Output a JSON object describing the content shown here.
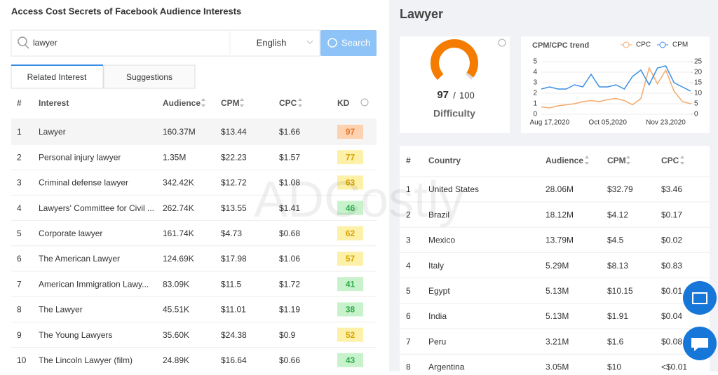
{
  "header": {
    "title": "Access Cost Secrets of Facebook Audience Interests"
  },
  "search": {
    "query": "lawyer",
    "language": "English",
    "button": "Search"
  },
  "tabs": [
    "Related Interest",
    "Suggestions"
  ],
  "interests": {
    "columns": [
      "#",
      "Interest",
      "Audience",
      "CPM",
      "CPC",
      "KD"
    ],
    "rows": [
      [
        1,
        "Lawyer",
        "160.37M",
        "$13.44",
        "$1.66",
        97
      ],
      [
        2,
        "Personal injury lawyer",
        "1.35M",
        "$22.23",
        "$1.57",
        77
      ],
      [
        3,
        "Criminal defense lawyer",
        "342.42K",
        "$12.72",
        "$1.08",
        63
      ],
      [
        4,
        "Lawyers' Committee for Civil ...",
        "262.74K",
        "$13.55",
        "$1.41",
        46
      ],
      [
        5,
        "Corporate lawyer",
        "161.74K",
        "$4.73",
        "$0.68",
        62
      ],
      [
        6,
        "The American Lawyer",
        "124.69K",
        "$17.98",
        "$1.06",
        57
      ],
      [
        7,
        "American Immigration Lawy...",
        "83.09K",
        "$11.5",
        "$1.72",
        41
      ],
      [
        8,
        "The Lawyer",
        "45.51K",
        "$11.01",
        "$1.19",
        38
      ],
      [
        9,
        "The Young Lawyers",
        "35.60K",
        "$24.38",
        "$0.9",
        52
      ],
      [
        10,
        "The Lincoln Lawyer (film)",
        "24.89K",
        "$16.64",
        "$0.66",
        43
      ]
    ]
  },
  "keyword": "Lawyer",
  "difficulty": {
    "value": 97,
    "separator": "/",
    "max": 100,
    "label": "Difficulty"
  },
  "chart_data": {
    "type": "line",
    "title": "CPM/CPC trend",
    "categories": [
      null,
      "Aug 17,2020",
      null,
      null,
      null,
      null,
      null,
      null,
      "Oct 05,2020",
      null,
      null,
      null,
      null,
      null,
      null,
      "Nov 23,2020",
      null,
      null,
      null
    ],
    "series": [
      {
        "name": "CPC",
        "color": "#f5a96b",
        "values": [
          0.7,
          0.6,
          0.8,
          0.9,
          1.0,
          1.2,
          1.3,
          1.2,
          1.4,
          1.5,
          1.3,
          0.9,
          1.5,
          4.4,
          2.9,
          4.2,
          2.2,
          1.2,
          1.0
        ]
      },
      {
        "name": "CPM",
        "color": "#3a8ee6",
        "values": [
          12,
          13,
          12,
          12,
          14,
          13,
          19,
          13,
          13,
          14,
          12,
          18,
          21,
          14,
          22,
          23,
          15,
          13,
          11
        ],
        "axis": "y2"
      }
    ],
    "ylim": [
      0,
      5
    ],
    "yticks": [
      0,
      1,
      2,
      3,
      4,
      5
    ],
    "y2lim": [
      0,
      25
    ],
    "y2ticks": [
      0,
      5,
      10,
      15,
      20,
      25
    ]
  },
  "countries": {
    "columns": [
      "#",
      "Country",
      "Audience",
      "CPM",
      "CPC"
    ],
    "rows": [
      [
        1,
        "United States",
        "28.06M",
        "$32.79",
        "$3.46"
      ],
      [
        2,
        "Brazil",
        "18.12M",
        "$4.12",
        "$0.17"
      ],
      [
        3,
        "Mexico",
        "13.79M",
        "$4.5",
        "$0.02"
      ],
      [
        4,
        "Italy",
        "5.29M",
        "$8.13",
        "$0.83"
      ],
      [
        5,
        "Egypt",
        "5.13M",
        "$10.15",
        "$0.01"
      ],
      [
        6,
        "India",
        "5.13M",
        "$1.91",
        "$0.04"
      ],
      [
        7,
        "Peru",
        "3.21M",
        "$1.6",
        "$0.08"
      ],
      [
        8,
        "Argentina",
        "3.05M",
        "$10",
        "<$0.01"
      ]
    ]
  },
  "watermark": "ADCostly"
}
